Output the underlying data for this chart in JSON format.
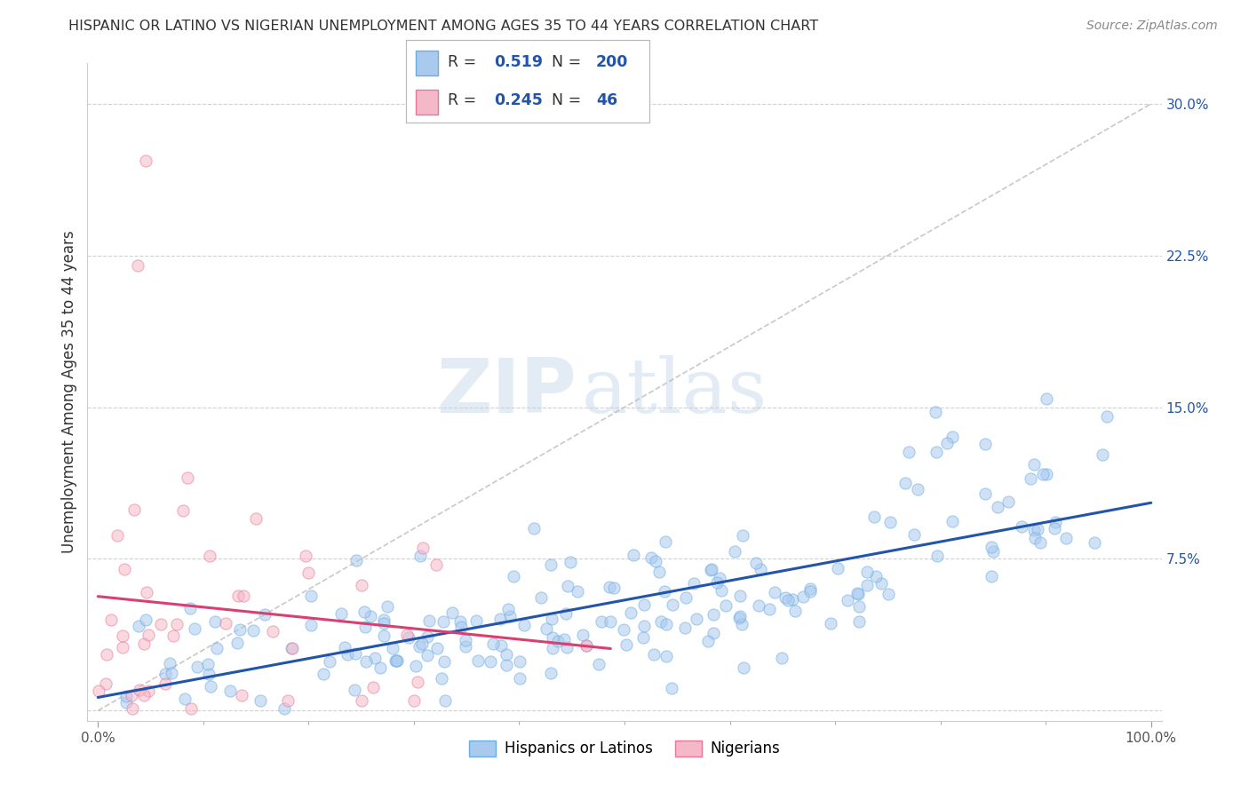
{
  "title": "HISPANIC OR LATINO VS NIGERIAN UNEMPLOYMENT AMONG AGES 35 TO 44 YEARS CORRELATION CHART",
  "source": "Source: ZipAtlas.com",
  "ylabel": "Unemployment Among Ages 35 to 44 years",
  "ytick_labels": [
    "",
    "7.5%",
    "15.0%",
    "22.5%",
    "30.0%"
  ],
  "ytick_values": [
    0.0,
    0.075,
    0.15,
    0.225,
    0.3
  ],
  "xlim": [
    -0.01,
    1.01
  ],
  "ylim": [
    -0.005,
    0.32
  ],
  "blue_fill": "#aac9ef",
  "blue_edge": "#6aaee0",
  "pink_fill": "#f5b8c8",
  "pink_edge": "#e8789a",
  "blue_line_color": "#2255aa",
  "pink_line_color": "#d94070",
  "ref_line_color": "#bbbbbb",
  "R_blue": 0.519,
  "N_blue": 200,
  "R_pink": 0.245,
  "N_pink": 46,
  "watermark_zip": "ZIP",
  "watermark_atlas": "atlas",
  "series1_label": "Hispanics or Latinos",
  "series2_label": "Nigerians",
  "xtick_positions": [
    0.0,
    1.0
  ],
  "xtick_labels": [
    "0.0%",
    "100.0%"
  ],
  "title_fontsize": 11.5,
  "source_fontsize": 10,
  "ytick_fontsize": 11,
  "scatter_size": 90,
  "scatter_alpha": 0.55,
  "scatter_lw": 0.8
}
